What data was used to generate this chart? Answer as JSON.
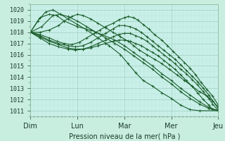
{
  "xlabel": "Pression niveau de la mer( hPa )",
  "bg_color": "#c8eee0",
  "plot_bg_color": "#c8f0e8",
  "grid_color_major": "#a0ccc0",
  "grid_color_minor": "#b8ddd4",
  "line_color": "#1a5c2a",
  "ylim": [
    1010.5,
    1020.5
  ],
  "yticks": [
    1011,
    1012,
    1013,
    1014,
    1015,
    1016,
    1017,
    1018,
    1019,
    1020
  ],
  "xtick_labels": [
    "Dim",
    "Lun",
    "Mar",
    "Mer",
    "Jeu"
  ],
  "xtick_pos": [
    0,
    0.25,
    0.5,
    0.75,
    1.0
  ],
  "series": [
    {
      "pts": [
        [
          0,
          1018.0
        ],
        [
          0.05,
          1019.3
        ],
        [
          0.1,
          1019.6
        ],
        [
          0.14,
          1019.5
        ],
        [
          0.18,
          1019.0
        ],
        [
          0.25,
          1018.5
        ],
        [
          0.32,
          1018.2
        ],
        [
          0.38,
          1017.8
        ],
        [
          0.45,
          1017.3
        ],
        [
          0.5,
          1016.8
        ],
        [
          0.55,
          1016.2
        ],
        [
          0.6,
          1015.6
        ],
        [
          0.65,
          1015.0
        ],
        [
          0.7,
          1014.3
        ],
        [
          0.75,
          1013.7
        ],
        [
          0.8,
          1013.0
        ],
        [
          0.85,
          1012.4
        ],
        [
          0.9,
          1011.8
        ],
        [
          0.95,
          1011.3
        ],
        [
          1.0,
          1011.0
        ]
      ]
    },
    {
      "pts": [
        [
          0,
          1018.0
        ],
        [
          0.04,
          1019.0
        ],
        [
          0.08,
          1019.8
        ],
        [
          0.12,
          1020.0
        ],
        [
          0.16,
          1019.6
        ],
        [
          0.2,
          1019.2
        ],
        [
          0.25,
          1018.7
        ],
        [
          0.3,
          1018.2
        ],
        [
          0.36,
          1017.5
        ],
        [
          0.42,
          1016.8
        ],
        [
          0.48,
          1016.0
        ],
        [
          0.52,
          1015.2
        ],
        [
          0.56,
          1014.4
        ],
        [
          0.6,
          1013.7
        ],
        [
          0.65,
          1013.2
        ],
        [
          0.7,
          1012.6
        ],
        [
          0.75,
          1012.1
        ],
        [
          0.8,
          1011.5
        ],
        [
          0.85,
          1011.1
        ],
        [
          0.9,
          1011.0
        ],
        [
          1.0,
          1011.0
        ]
      ]
    },
    {
      "pts": [
        [
          0,
          1018.0
        ],
        [
          0.06,
          1018.5
        ],
        [
          0.12,
          1019.5
        ],
        [
          0.16,
          1019.6
        ],
        [
          0.2,
          1019.4
        ],
        [
          0.25,
          1019.0
        ],
        [
          0.3,
          1018.5
        ],
        [
          0.35,
          1018.0
        ],
        [
          0.4,
          1017.5
        ],
        [
          0.45,
          1017.0
        ],
        [
          0.5,
          1016.5
        ],
        [
          0.55,
          1015.9
        ],
        [
          0.6,
          1015.3
        ],
        [
          0.65,
          1014.7
        ],
        [
          0.7,
          1014.0
        ],
        [
          0.75,
          1013.4
        ],
        [
          0.8,
          1012.7
        ],
        [
          0.85,
          1012.1
        ],
        [
          0.9,
          1011.6
        ],
        [
          0.95,
          1011.2
        ],
        [
          1.0,
          1011.0
        ]
      ]
    },
    {
      "pts": [
        [
          0,
          1018.0
        ],
        [
          0.05,
          1018.0
        ],
        [
          0.1,
          1018.2
        ],
        [
          0.15,
          1018.6
        ],
        [
          0.18,
          1019.0
        ],
        [
          0.22,
          1019.4
        ],
        [
          0.25,
          1019.6
        ],
        [
          0.28,
          1019.5
        ],
        [
          0.32,
          1019.2
        ],
        [
          0.36,
          1018.8
        ],
        [
          0.4,
          1018.4
        ],
        [
          0.44,
          1018.0
        ],
        [
          0.48,
          1017.6
        ],
        [
          0.52,
          1017.2
        ],
        [
          0.55,
          1016.8
        ],
        [
          0.58,
          1016.4
        ],
        [
          0.62,
          1016.0
        ],
        [
          0.66,
          1015.6
        ],
        [
          0.7,
          1015.2
        ],
        [
          0.74,
          1014.7
        ],
        [
          0.78,
          1014.2
        ],
        [
          0.82,
          1013.7
        ],
        [
          0.86,
          1013.2
        ],
        [
          0.9,
          1012.7
        ],
        [
          0.94,
          1012.3
        ],
        [
          0.97,
          1011.9
        ],
        [
          1.0,
          1011.2
        ]
      ]
    },
    {
      "pts": [
        [
          0,
          1018.0
        ],
        [
          0.05,
          1017.8
        ],
        [
          0.1,
          1017.5
        ],
        [
          0.14,
          1017.2
        ],
        [
          0.18,
          1017.0
        ],
        [
          0.22,
          1016.9
        ],
        [
          0.26,
          1017.1
        ],
        [
          0.3,
          1017.5
        ],
        [
          0.34,
          1017.9
        ],
        [
          0.37,
          1018.2
        ],
        [
          0.4,
          1018.5
        ],
        [
          0.44,
          1018.8
        ],
        [
          0.47,
          1019.1
        ],
        [
          0.5,
          1019.3
        ],
        [
          0.52,
          1019.4
        ],
        [
          0.55,
          1019.3
        ],
        [
          0.57,
          1019.1
        ],
        [
          0.6,
          1018.7
        ],
        [
          0.63,
          1018.3
        ],
        [
          0.66,
          1017.8
        ],
        [
          0.7,
          1017.3
        ],
        [
          0.73,
          1016.8
        ],
        [
          0.76,
          1016.3
        ],
        [
          0.79,
          1015.8
        ],
        [
          0.82,
          1015.3
        ],
        [
          0.85,
          1014.8
        ],
        [
          0.88,
          1014.2
        ],
        [
          0.91,
          1013.5
        ],
        [
          0.94,
          1012.9
        ],
        [
          0.97,
          1012.3
        ],
        [
          1.0,
          1011.5
        ]
      ]
    },
    {
      "pts": [
        [
          0,
          1018.0
        ],
        [
          0.05,
          1017.7
        ],
        [
          0.1,
          1017.3
        ],
        [
          0.15,
          1017.0
        ],
        [
          0.2,
          1016.8
        ],
        [
          0.24,
          1016.7
        ],
        [
          0.28,
          1016.8
        ],
        [
          0.32,
          1017.1
        ],
        [
          0.36,
          1017.5
        ],
        [
          0.4,
          1017.9
        ],
        [
          0.44,
          1018.3
        ],
        [
          0.47,
          1018.6
        ],
        [
          0.5,
          1018.6
        ],
        [
          0.53,
          1018.5
        ],
        [
          0.56,
          1018.3
        ],
        [
          0.59,
          1018.0
        ],
        [
          0.62,
          1017.6
        ],
        [
          0.65,
          1017.2
        ],
        [
          0.68,
          1016.8
        ],
        [
          0.71,
          1016.4
        ],
        [
          0.74,
          1016.0
        ],
        [
          0.77,
          1015.6
        ],
        [
          0.8,
          1015.1
        ],
        [
          0.83,
          1014.6
        ],
        [
          0.86,
          1014.1
        ],
        [
          0.89,
          1013.6
        ],
        [
          0.92,
          1013.0
        ],
        [
          0.95,
          1012.4
        ],
        [
          0.97,
          1011.9
        ],
        [
          1.0,
          1011.3
        ]
      ]
    },
    {
      "pts": [
        [
          0,
          1018.0
        ],
        [
          0.05,
          1017.6
        ],
        [
          0.1,
          1017.2
        ],
        [
          0.15,
          1016.9
        ],
        [
          0.2,
          1016.6
        ],
        [
          0.24,
          1016.5
        ],
        [
          0.28,
          1016.5
        ],
        [
          0.32,
          1016.7
        ],
        [
          0.36,
          1017.0
        ],
        [
          0.4,
          1017.3
        ],
        [
          0.44,
          1017.6
        ],
        [
          0.47,
          1017.8
        ],
        [
          0.5,
          1017.9
        ],
        [
          0.53,
          1017.9
        ],
        [
          0.56,
          1017.7
        ],
        [
          0.59,
          1017.5
        ],
        [
          0.62,
          1017.2
        ],
        [
          0.65,
          1016.8
        ],
        [
          0.68,
          1016.4
        ],
        [
          0.71,
          1016.0
        ],
        [
          0.74,
          1015.6
        ],
        [
          0.77,
          1015.2
        ],
        [
          0.8,
          1014.7
        ],
        [
          0.83,
          1014.3
        ],
        [
          0.86,
          1013.8
        ],
        [
          0.89,
          1013.3
        ],
        [
          0.92,
          1012.7
        ],
        [
          0.95,
          1012.1
        ],
        [
          0.97,
          1011.6
        ],
        [
          1.0,
          1011.0
        ]
      ]
    },
    {
      "pts": [
        [
          0,
          1018.0
        ],
        [
          0.05,
          1017.5
        ],
        [
          0.1,
          1017.0
        ],
        [
          0.15,
          1016.7
        ],
        [
          0.2,
          1016.5
        ],
        [
          0.24,
          1016.4
        ],
        [
          0.28,
          1016.5
        ],
        [
          0.32,
          1016.6
        ],
        [
          0.36,
          1016.8
        ],
        [
          0.4,
          1017.0
        ],
        [
          0.44,
          1017.2
        ],
        [
          0.47,
          1017.3
        ],
        [
          0.5,
          1017.3
        ],
        [
          0.53,
          1017.2
        ],
        [
          0.56,
          1017.0
        ],
        [
          0.59,
          1016.8
        ],
        [
          0.62,
          1016.5
        ],
        [
          0.65,
          1016.2
        ],
        [
          0.68,
          1015.9
        ],
        [
          0.71,
          1015.5
        ],
        [
          0.74,
          1015.1
        ],
        [
          0.77,
          1014.7
        ],
        [
          0.8,
          1014.2
        ],
        [
          0.83,
          1013.7
        ],
        [
          0.86,
          1013.2
        ],
        [
          0.89,
          1012.6
        ],
        [
          0.92,
          1012.0
        ],
        [
          0.95,
          1011.5
        ],
        [
          0.97,
          1011.1
        ],
        [
          1.0,
          1011.0
        ]
      ]
    }
  ]
}
